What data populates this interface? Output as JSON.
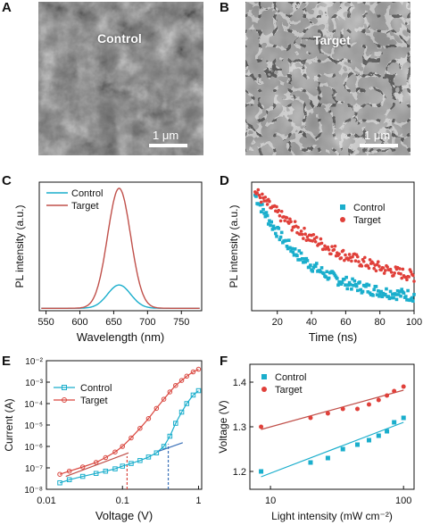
{
  "panels": {
    "A": {
      "letter": "A",
      "image_label": "Control",
      "scale_label": "1 μm"
    },
    "B": {
      "letter": "B",
      "image_label": "Target",
      "scale_label": "1 μm"
    }
  },
  "colors": {
    "control": "#1aaecc",
    "target": "#e0403a",
    "target_line": "#c0504a",
    "fit_line": "#3a70b8"
  },
  "chart_data": [
    {
      "panel": "C",
      "type": "line",
      "xlabel": "Wavelength (nm)",
      "ylabel": "PL intensity (a.u.)",
      "xlim": [
        540,
        780
      ],
      "ylim": [
        0,
        1.05
      ],
      "xticks": [
        550,
        600,
        650,
        700,
        750
      ],
      "yticks_shown": false,
      "legend": "top-left",
      "series": [
        {
          "name": "Control",
          "color": "#1aaecc",
          "peak_x": 658,
          "peak_y": 0.19,
          "sigma": 17,
          "base": 0.02
        },
        {
          "name": "Target",
          "color": "#c0504a",
          "peak_x": 658,
          "peak_y": 0.98,
          "sigma": 17,
          "base": 0.02
        }
      ]
    },
    {
      "panel": "D",
      "type": "scatter",
      "xlabel": "Time (ns)",
      "ylabel": "PL intensity (a.u.)",
      "xlim": [
        5,
        100
      ],
      "ylim": [
        0,
        1.0
      ],
      "xticks": [
        20,
        40,
        60,
        80,
        100
      ],
      "yticks_shown": false,
      "legend": "top-right",
      "series": [
        {
          "name": "Control",
          "marker": "square",
          "color": "#1aaecc",
          "x_start": 7,
          "y_start": 0.9,
          "y_floor": 0.08,
          "tau": 30
        },
        {
          "name": "Target",
          "marker": "circle",
          "color": "#e0403a",
          "x_start": 7,
          "y_start": 0.93,
          "y_floor": 0.12,
          "tau": 55
        }
      ]
    },
    {
      "panel": "E",
      "type": "line",
      "xlabel": "Voltage (V)",
      "ylabel": "Current (A)",
      "xscale": "log",
      "yscale": "log",
      "xlim": [
        0.01,
        1.1
      ],
      "ylim": [
        1e-08,
        0.01
      ],
      "xtick_labels": [
        "0.01",
        "0.1",
        "1"
      ],
      "ytick_labels": [
        "10⁻⁸",
        "10⁻⁷",
        "10⁻⁶",
        "10⁻⁵",
        "10⁻⁴",
        "10⁻³",
        "10⁻²"
      ],
      "legend": "top-left",
      "series": [
        {
          "name": "Control",
          "marker": "square-open",
          "color": "#1aaecc",
          "x": [
            0.015,
            0.02,
            0.03,
            0.045,
            0.06,
            0.08,
            0.1,
            0.13,
            0.17,
            0.22,
            0.28,
            0.35,
            0.42,
            0.5,
            0.6,
            0.7,
            0.85,
            1.0
          ],
          "y": [
            2e-08,
            2.8e-08,
            4e-08,
            5.5e-08,
            7e-08,
            9e-08,
            1.2e-07,
            1.6e-07,
            2.2e-07,
            3.2e-07,
            5e-07,
            1e-06,
            3e-06,
            1.2e-05,
            4e-05,
            0.0001,
            0.00025,
            0.0004
          ]
        },
        {
          "name": "Target",
          "marker": "circle-open",
          "color": "#d9463e",
          "x": [
            0.015,
            0.02,
            0.03,
            0.045,
            0.06,
            0.08,
            0.1,
            0.13,
            0.17,
            0.22,
            0.28,
            0.35,
            0.42,
            0.5,
            0.6,
            0.7,
            0.85,
            1.0
          ],
          "y": [
            5e-08,
            7e-08,
            1.1e-07,
            1.8e-07,
            3e-07,
            5.5e-07,
            1e-06,
            2.5e-06,
            7e-06,
            2e-05,
            6e-05,
            0.00016,
            0.00035,
            0.0007,
            0.0012,
            0.0019,
            0.003,
            0.004
          ]
        }
      ],
      "fit_lines": [
        {
          "color": "#c0504a",
          "x": [
            0.018,
            0.12
          ],
          "y": [
            4e-08,
            5e-07
          ]
        },
        {
          "color": "#3a70b8",
          "x": [
            0.3,
            0.62
          ],
          "y": [
            6e-07,
            1.5e-06
          ]
        }
      ],
      "markers_vertical": [
        {
          "color": "#d9463e",
          "x": 0.115,
          "y_top": 3.5e-07
        },
        {
          "color": "#3a70b8",
          "x": 0.4,
          "y_top": 1.3e-06
        }
      ]
    },
    {
      "panel": "F",
      "type": "scatter",
      "xlabel": "Light intensity (mW cm⁻²)",
      "ylabel": "Voltage (V)",
      "xscale": "log",
      "xlim": [
        7,
        120
      ],
      "ylim": [
        1.16,
        1.44
      ],
      "xtick_labels": [
        "10",
        "100"
      ],
      "yticks": [
        1.2,
        1.3,
        1.4
      ],
      "legend": "top-left",
      "series": [
        {
          "name": "Control",
          "marker": "square",
          "color": "#1aaecc",
          "x": [
            8.5,
            20,
            27,
            35,
            45,
            55,
            65,
            75,
            85,
            100
          ],
          "y": [
            1.2,
            1.22,
            1.23,
            1.25,
            1.26,
            1.27,
            1.28,
            1.29,
            1.31,
            1.32
          ]
        },
        {
          "name": "Target",
          "marker": "circle",
          "color": "#e0403a",
          "x": [
            8.5,
            20,
            27,
            35,
            45,
            55,
            65,
            75,
            85,
            100
          ],
          "y": [
            1.3,
            1.32,
            1.33,
            1.34,
            1.34,
            1.35,
            1.36,
            1.37,
            1.38,
            1.39
          ]
        }
      ],
      "fit_lines": [
        {
          "color": "#1aaecc",
          "x": [
            8.5,
            100
          ],
          "y": [
            1.188,
            1.31
          ]
        },
        {
          "color": "#c0504a",
          "x": [
            8.5,
            100
          ],
          "y": [
            1.294,
            1.382
          ]
        }
      ]
    }
  ]
}
